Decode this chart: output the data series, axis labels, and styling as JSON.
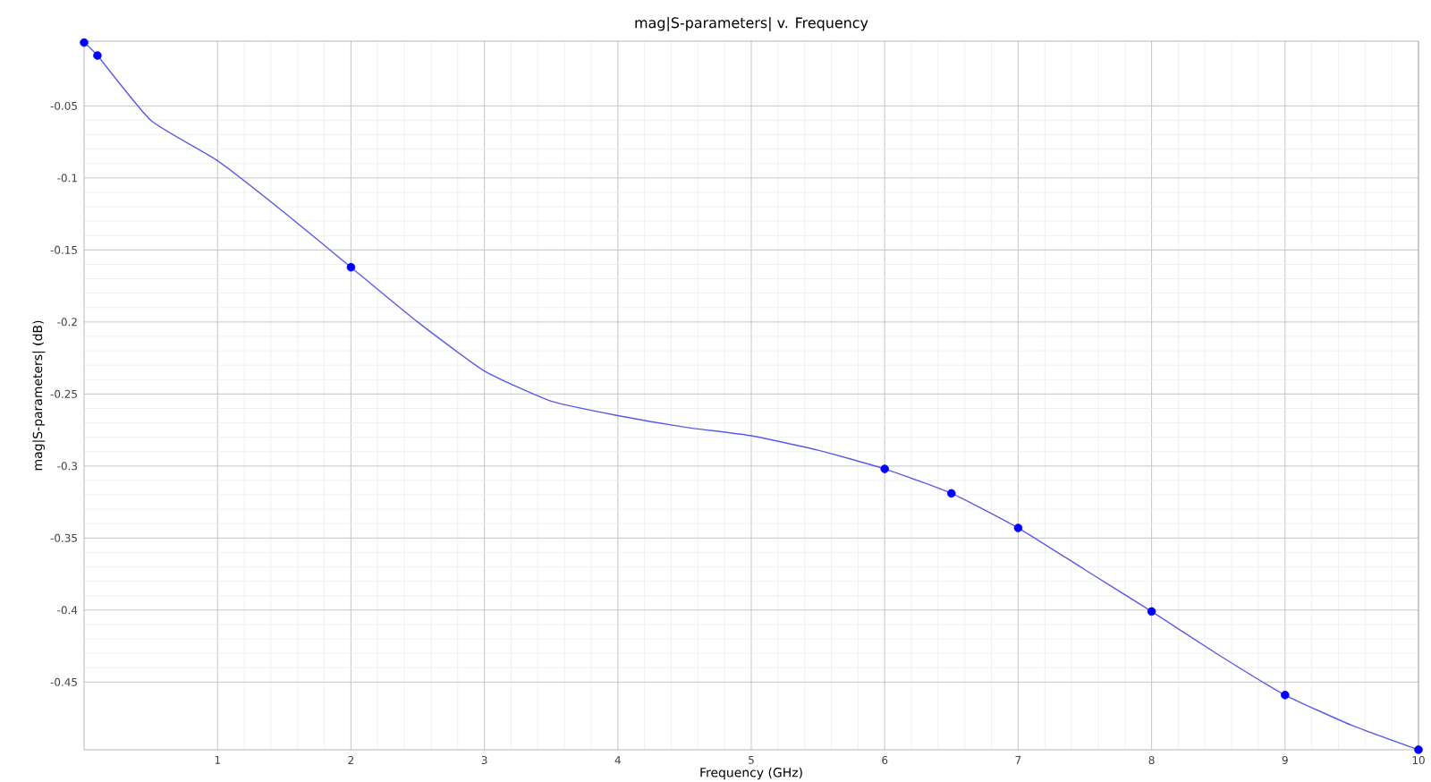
{
  "chart_data": {
    "type": "line",
    "title": "mag|S-parameters| v. Frequency",
    "xlabel": "Frequency (GHz)",
    "ylabel": "mag|S-parameters| (dB)",
    "xlim": [
      0,
      10
    ],
    "ylim": [
      -0.497,
      -0.005
    ],
    "xticks": [
      1,
      2,
      3,
      4,
      5,
      6,
      7,
      8,
      9,
      10
    ],
    "yticks": [
      -0.05,
      -0.1,
      -0.15,
      -0.2,
      -0.25,
      -0.3,
      -0.35,
      -0.4,
      -0.45
    ],
    "grid": true,
    "series": [
      {
        "color": "#5a5ae6",
        "marker": "none",
        "x": [
          0,
          0.1,
          0.5,
          1,
          1.5,
          2,
          2.5,
          3,
          3.5,
          4,
          4.5,
          5,
          5.5,
          6,
          6.5,
          7,
          7.5,
          8,
          8.5,
          9,
          9.5,
          10
        ],
        "values": [
          -0.006,
          -0.015,
          -0.06,
          -0.088,
          -0.124,
          -0.162,
          -0.2,
          -0.234,
          -0.255,
          -0.265,
          -0.273,
          -0.279,
          -0.289,
          -0.302,
          -0.319,
          -0.343,
          -0.372,
          -0.401,
          -0.431,
          -0.459,
          -0.48,
          -0.497
        ]
      },
      {
        "type": "scatter",
        "color": "#0000ff",
        "marker": "circle",
        "x": [
          0,
          0.1,
          2,
          6,
          6.5,
          7,
          8,
          9,
          10
        ],
        "values": [
          -0.006,
          -0.015,
          -0.162,
          -0.302,
          -0.319,
          -0.343,
          -0.401,
          -0.459,
          -0.497
        ]
      }
    ]
  }
}
